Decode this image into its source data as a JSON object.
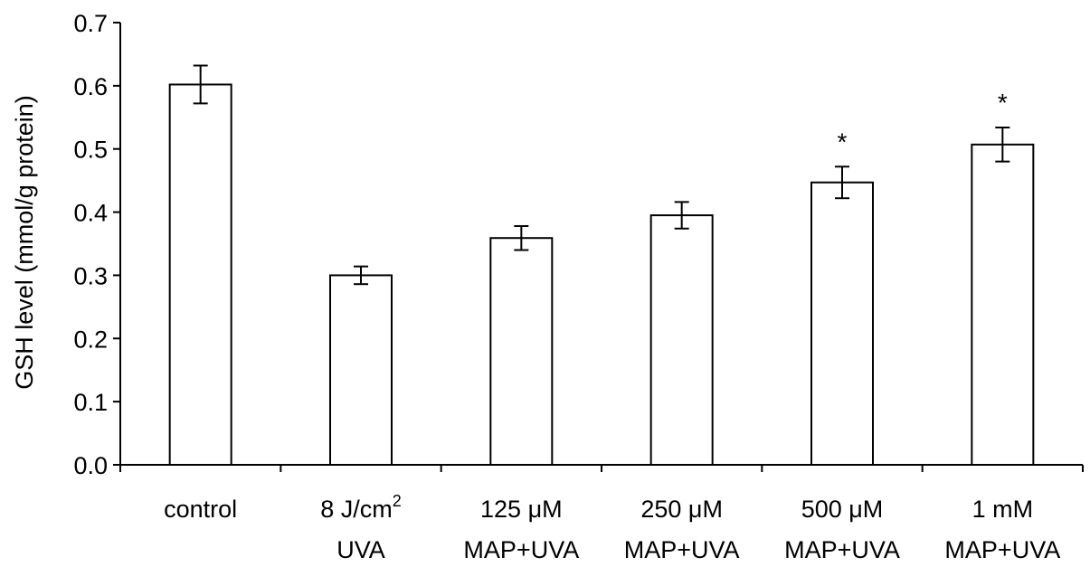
{
  "chart_data": {
    "type": "bar",
    "title": "",
    "xlabel": "",
    "ylabel": "GSH level (mmol/g protein)",
    "ylim": [
      0,
      0.7
    ],
    "yticks": [
      "0.0",
      "0.1",
      "0.2",
      "0.3",
      "0.4",
      "0.5",
      "0.6",
      "0.7"
    ],
    "grid": false,
    "categories": [
      {
        "line1": "control",
        "line2": "",
        "sup": ""
      },
      {
        "line1": "8 J/cm",
        "line2": "UVA",
        "sup": "2"
      },
      {
        "line1": "125 μM",
        "line2": "MAP+UVA",
        "sup": ""
      },
      {
        "line1": "250 μM",
        "line2": "MAP+UVA",
        "sup": ""
      },
      {
        "line1": "500 μM",
        "line2": "MAP+UVA",
        "sup": ""
      },
      {
        "line1": "1 mM",
        "line2": "MAP+UVA",
        "sup": ""
      }
    ],
    "values": [
      0.602,
      0.3,
      0.359,
      0.395,
      0.447,
      0.507
    ],
    "errors": [
      0.03,
      0.014,
      0.019,
      0.021,
      0.025,
      0.027
    ],
    "significance": [
      "",
      "",
      "",
      "",
      "*",
      "*"
    ],
    "colors": {
      "bar_fill": "#ffffff",
      "stroke": "#000000"
    }
  }
}
